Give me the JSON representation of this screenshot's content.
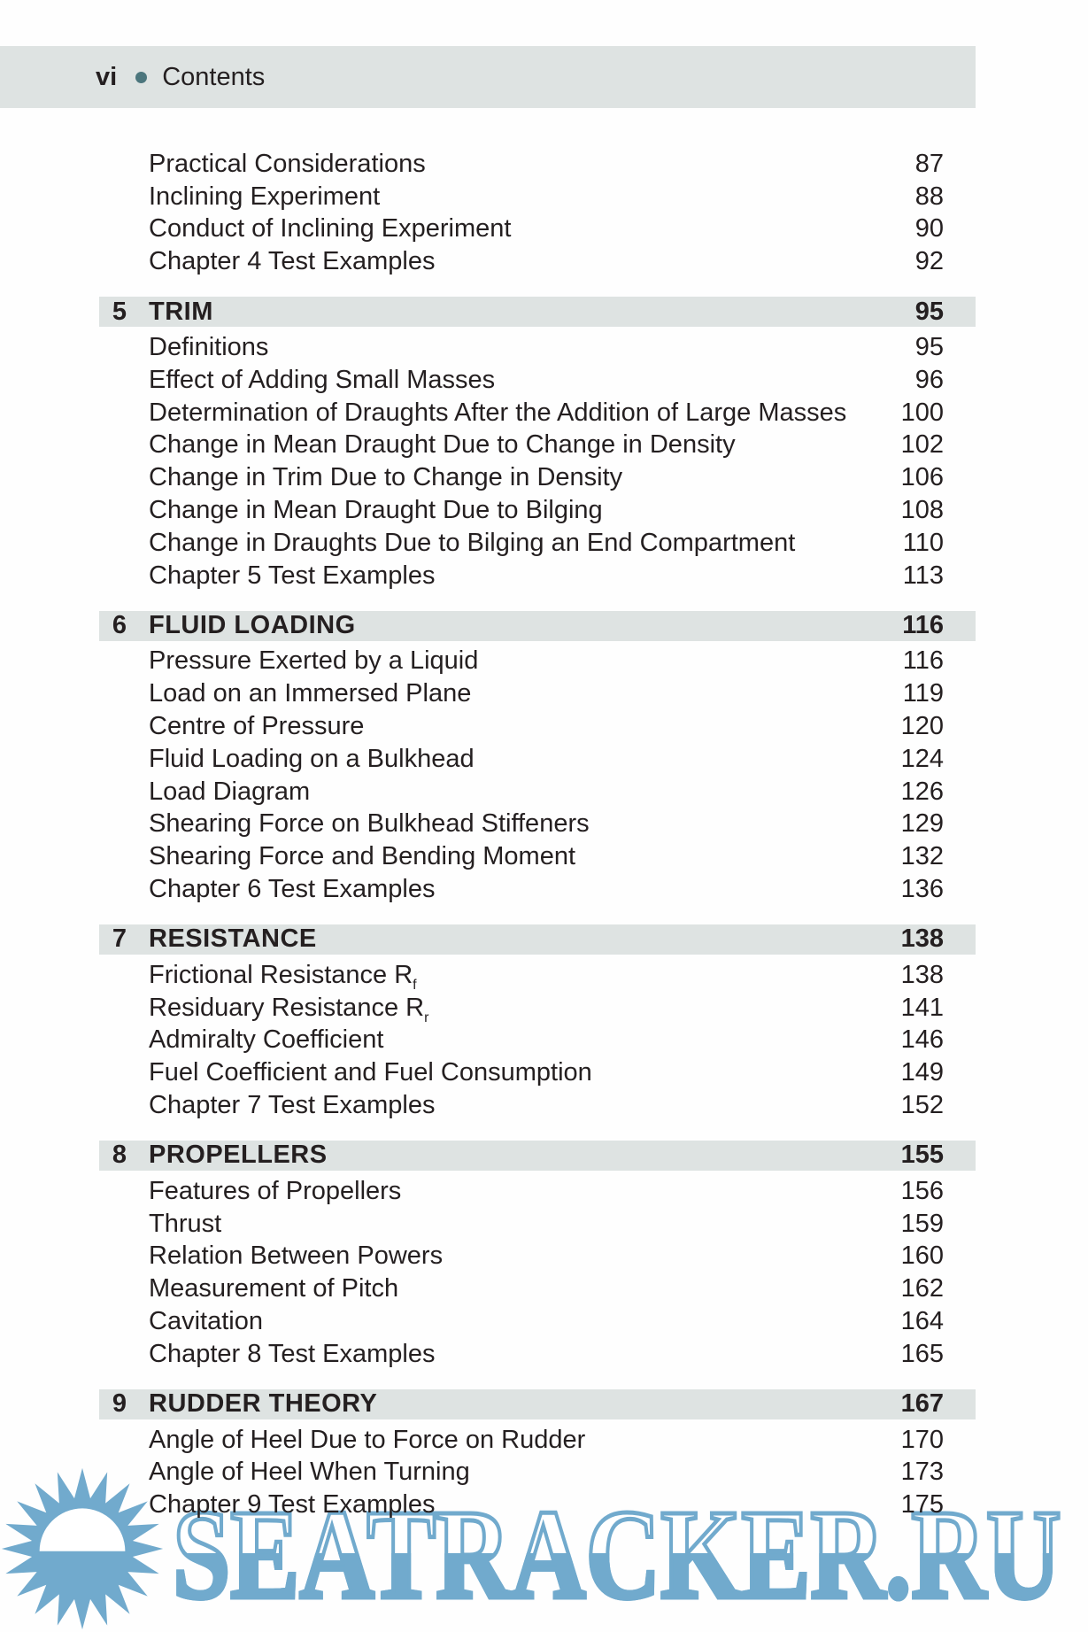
{
  "header": {
    "folio": "vi",
    "separator": "•",
    "title": "Contents"
  },
  "toc": {
    "intro_items": [
      {
        "label": "Practical Considerations",
        "page": "87"
      },
      {
        "label": "Inclining Experiment",
        "page": "88"
      },
      {
        "label": "Conduct of Inclining Experiment",
        "page": "90"
      },
      {
        "label": "Chapter 4 Test Examples",
        "page": "92"
      }
    ],
    "sections": [
      {
        "number": "5",
        "title": "TRIM",
        "page": "95",
        "items": [
          {
            "label": "Definitions",
            "page": "95"
          },
          {
            "label": "Effect of Adding Small Masses",
            "page": "96"
          },
          {
            "label": "Determination of Draughts After the Addition of Large Masses",
            "page": "100"
          },
          {
            "label": "Change in Mean Draught Due to Change in Density",
            "page": "102"
          },
          {
            "label": "Change in Trim Due to Change in Density",
            "page": "106"
          },
          {
            "label": "Change in Mean Draught Due to Bilging",
            "page": "108"
          },
          {
            "label": "Change in Draughts Due to Bilging an End Compartment",
            "page": "110"
          },
          {
            "label": "Chapter 5 Test Examples",
            "page": "113"
          }
        ]
      },
      {
        "number": "6",
        "title": "FLUID LOADING",
        "page": "116",
        "items": [
          {
            "label": "Pressure Exerted by a Liquid",
            "page": "116"
          },
          {
            "label": "Load on an Immersed Plane",
            "page": "119"
          },
          {
            "label": "Centre of Pressure",
            "page": "120"
          },
          {
            "label": "Fluid Loading on a Bulkhead",
            "page": "124"
          },
          {
            "label": "Load Diagram",
            "page": "126"
          },
          {
            "label": "Shearing Force on Bulkhead Stiffeners",
            "page": "129"
          },
          {
            "label": "Shearing Force and Bending Moment",
            "page": "132"
          },
          {
            "label": "Chapter 6 Test Examples",
            "page": "136"
          }
        ]
      },
      {
        "number": "7",
        "title": "RESISTANCE",
        "page": "138",
        "items": [
          {
            "label": "Frictional Resistance R",
            "subscript": "f",
            "page": "138"
          },
          {
            "label": "Residuary Resistance R",
            "subscript": "r",
            "page": "141"
          },
          {
            "label": "Admiralty Coefficient",
            "page": "146"
          },
          {
            "label": "Fuel Coefficient and Fuel Consumption",
            "page": "149"
          },
          {
            "label": "Chapter 7 Test Examples",
            "page": "152"
          }
        ]
      },
      {
        "number": "8",
        "title": "PROPELLERS",
        "page": "155",
        "items": [
          {
            "label": "Features of Propellers",
            "page": "156"
          },
          {
            "label": "Thrust",
            "page": "159"
          },
          {
            "label": "Relation Between Powers",
            "page": "160"
          },
          {
            "label": "Measurement of Pitch",
            "page": "162"
          },
          {
            "label": "Cavitation",
            "page": "164"
          },
          {
            "label": "Chapter 8 Test Examples",
            "page": "165"
          }
        ]
      },
      {
        "number": "9",
        "title": "RUDDER THEORY",
        "page": "167",
        "items": [
          {
            "label": "Angle of Heel Due to Force on Rudder",
            "page": "170"
          },
          {
            "label": "Angle of Heel When Turning",
            "page": "173"
          },
          {
            "label": "Chapter 9 Test Examples",
            "page": "175"
          }
        ]
      }
    ]
  },
  "watermark": {
    "text": "SEATRACKER.RU",
    "sun_icon": "sunburst-logo"
  },
  "colors": {
    "band": "#dee3e2",
    "accent_dot": "#4c767d",
    "text": "#241f20",
    "watermark_blue": "#71aacd"
  }
}
